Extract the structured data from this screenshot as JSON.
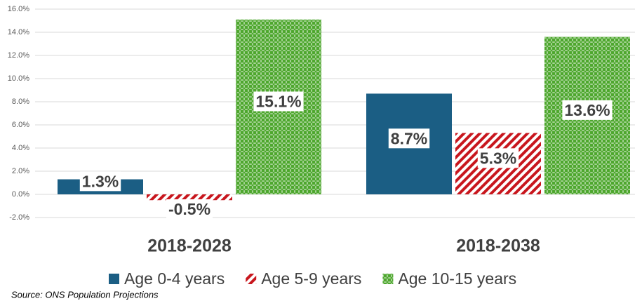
{
  "chart_data": {
    "type": "bar",
    "categories": [
      "2018-2028",
      "2018-2038"
    ],
    "series": [
      {
        "name": "Age 0-4 years",
        "color": "#1b5e84",
        "pattern": "solid",
        "values": [
          1.3,
          8.7
        ],
        "value_labels": [
          "1.3%",
          "8.7%"
        ]
      },
      {
        "name": "Age 5-9 years",
        "color": "#c8161d",
        "pattern": "hatch",
        "values": [
          -0.5,
          5.3
        ],
        "value_labels": [
          "-0.5%",
          "5.3%"
        ]
      },
      {
        "name": "Age 10-15 years",
        "color": "#4ea72e",
        "pattern": "dots",
        "values": [
          15.1,
          13.6
        ],
        "value_labels": [
          "15.1%",
          "13.6%"
        ]
      }
    ],
    "ylim": [
      -2,
      16
    ],
    "yticks": [
      {
        "value": -2,
        "label": "-2.0%"
      },
      {
        "value": 0,
        "label": "0.0%"
      },
      {
        "value": 2,
        "label": "2.0%"
      },
      {
        "value": 4,
        "label": "4.0%"
      },
      {
        "value": 6,
        "label": "6.0%"
      },
      {
        "value": 8,
        "label": "8.0%"
      },
      {
        "value": 10,
        "label": "10.0%"
      },
      {
        "value": 12,
        "label": "12.0%"
      },
      {
        "value": 14,
        "label": "14.0%"
      },
      {
        "value": 16,
        "label": "16.0%"
      }
    ],
    "grid": true,
    "legend": "bottom",
    "source": "Source: ONS Population Projections"
  }
}
